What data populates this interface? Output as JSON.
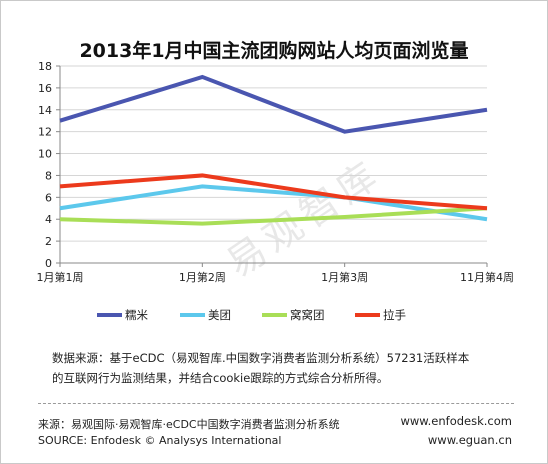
{
  "title": "2013年1月中国主流团购网站人均页面浏览量",
  "watermark": "易观智库",
  "note_line1": "数据来源：基于eCDC（易观智库.中国数字消费者监测分析系统）57231活跃样本",
  "note_line2": "的互联网行为监测结果，并结合cookie跟踪的方式综合分析所得。",
  "source_zh": "来源：易观国际·易观智库·eCDC中国数字消费者监测分析系统",
  "source_en": "SOURCE: Enfodesk © Analysys International",
  "url1": "www.enfodesk.com",
  "url2": "www.eguan.cn",
  "chart_data": {
    "type": "line",
    "title": "2013年1月中国主流团购网站人均页面浏览量",
    "categories": [
      "1月第1周",
      "1月第2周",
      "1月第3周",
      "11月第4周"
    ],
    "ylim": [
      0,
      18
    ],
    "yticks": [
      0,
      2,
      4,
      6,
      8,
      10,
      12,
      14,
      16,
      18
    ],
    "grid": "horizontal",
    "legend_position": "bottom",
    "series": [
      {
        "name": "糯米",
        "color": "#4a56b0",
        "values": [
          13,
          17,
          12,
          14
        ]
      },
      {
        "name": "美团",
        "color": "#5cc8ec",
        "values": [
          5,
          7,
          6,
          4
        ]
      },
      {
        "name": "窝窝团",
        "color": "#a9de57",
        "values": [
          4,
          3.6,
          4.2,
          5
        ]
      },
      {
        "name": "拉手",
        "color": "#ec3a1c",
        "values": [
          7,
          8,
          6,
          5
        ]
      }
    ]
  }
}
